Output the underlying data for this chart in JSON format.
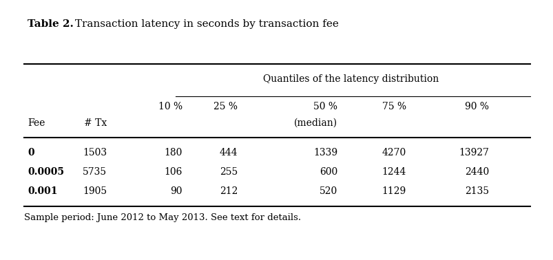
{
  "title_bold": "Table 2.",
  "title_regular": " Transaction latency in seconds by transaction fee",
  "group_header": "Quantiles of the latency distribution",
  "col_header1": [
    "10 %",
    "25 %",
    "50 %",
    "75 %",
    "90 %"
  ],
  "col_header2_fee": "Fee",
  "col_header2_tx": "# Tx",
  "col_header2_median": "(median)",
  "rows": [
    [
      "0",
      "1503",
      "180",
      "444",
      "1339",
      "4270",
      "13927"
    ],
    [
      "0.0005",
      "5735",
      "106",
      "255",
      "600",
      "1244",
      "2440"
    ],
    [
      "0.001",
      "1905",
      "90",
      "212",
      "520",
      "1129",
      "2135"
    ]
  ],
  "footnote": "Sample period: June 2012 to May 2013. See text for details.",
  "bg_color": "#ffffff",
  "text_color": "#000000"
}
